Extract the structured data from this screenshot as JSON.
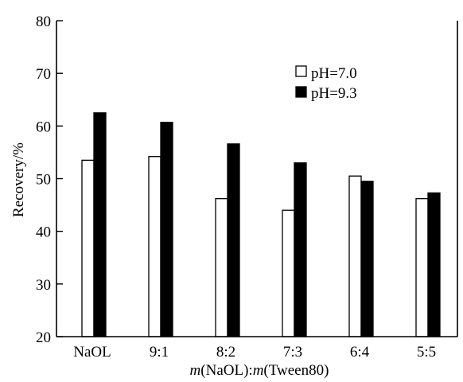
{
  "chart_data": {
    "type": "bar",
    "categories": [
      "NaOL",
      "9:1",
      "8:2",
      "7:3",
      "6:4",
      "5:5"
    ],
    "series": [
      {
        "name": "pH=7.0",
        "values": [
          53.5,
          54.2,
          46.2,
          44.0,
          50.5,
          46.2
        ],
        "color": "#ffffff"
      },
      {
        "name": "pH=9.3",
        "values": [
          62.5,
          60.7,
          56.6,
          53.0,
          49.5,
          47.3
        ],
        "color": "#000000"
      }
    ],
    "ylabel": "Recovery/%",
    "xlabel": {
      "parts": [
        {
          "text": "m",
          "italic": true
        },
        {
          "text": "(NaOL):",
          "italic": false
        },
        {
          "text": "m",
          "italic": true
        },
        {
          "text": "(Tween80)",
          "italic": false
        }
      ]
    },
    "ylim": [
      20,
      80
    ],
    "yticks": [
      20,
      30,
      40,
      50,
      60,
      70,
      80
    ],
    "grid": false,
    "legend_position": "top-right"
  }
}
